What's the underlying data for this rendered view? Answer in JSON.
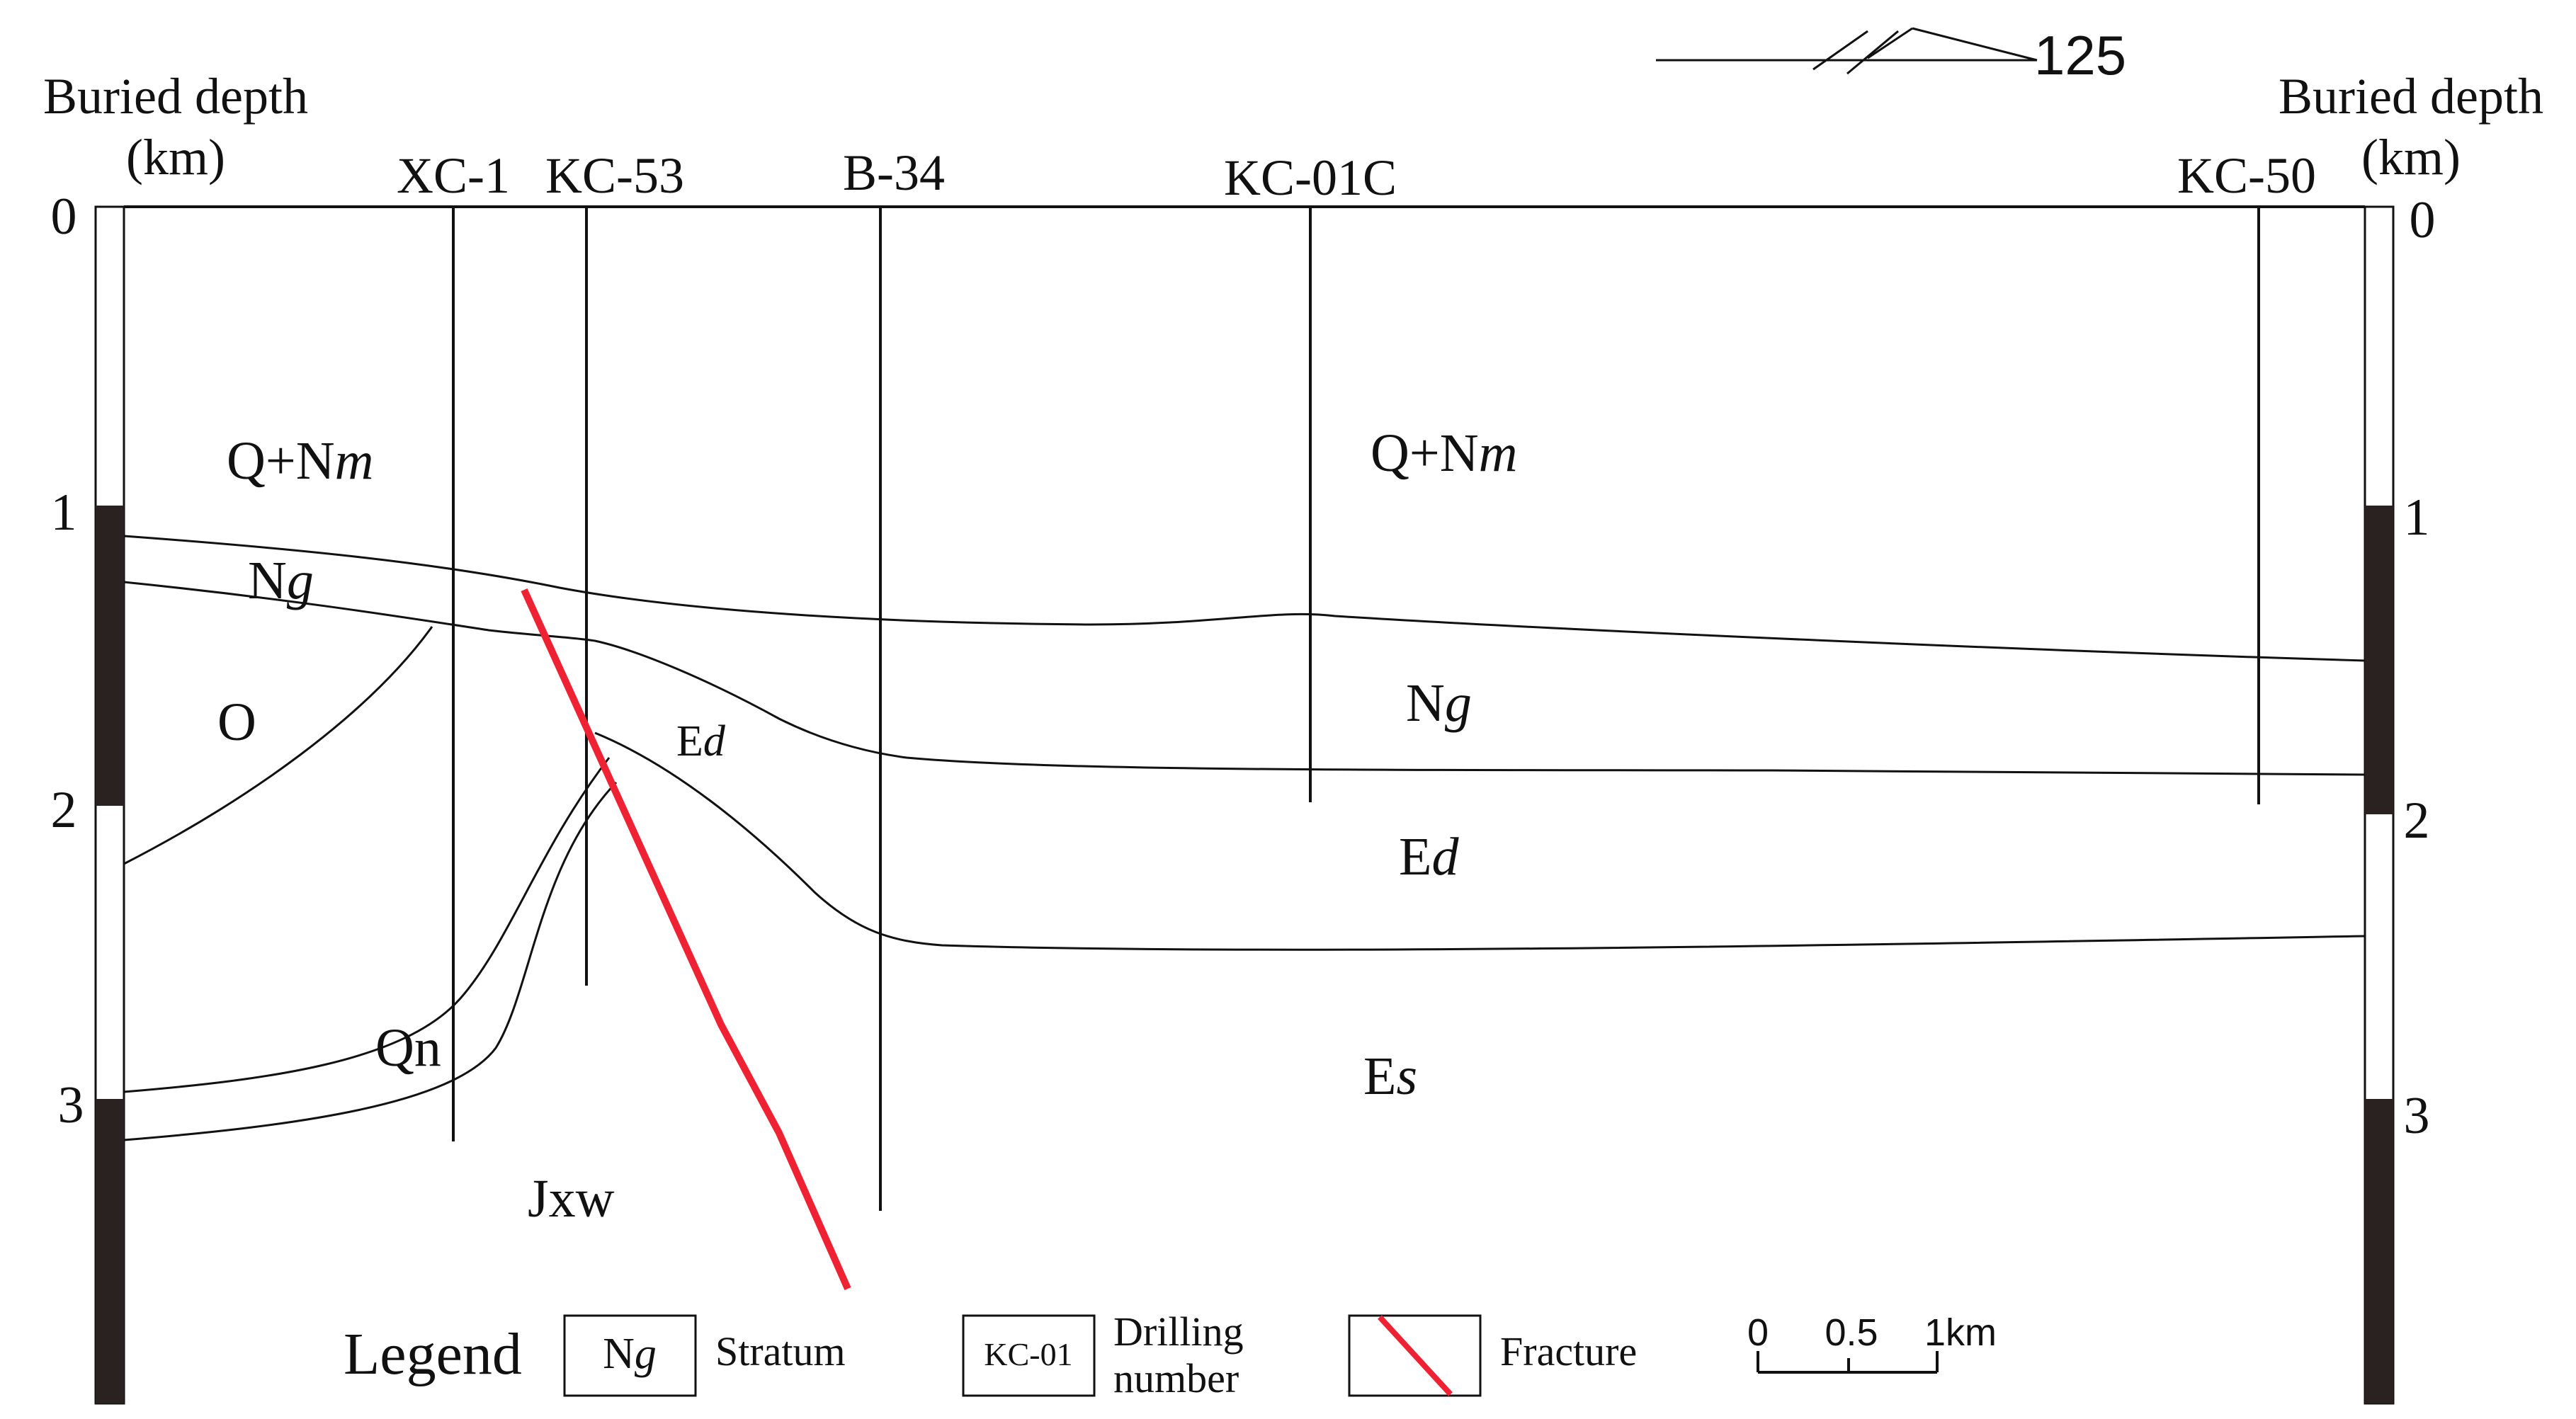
{
  "colors": {
    "line": "#111111",
    "fracture": "#ee2233",
    "column_dark": "#2a2220",
    "background": "#ffffff"
  },
  "header": {
    "left_axis_title_line1": "Buried depth",
    "left_axis_title_line2": "(km)",
    "right_axis_title_line1": "Buried depth",
    "right_axis_title_line2": "(km)",
    "orientation_label": "125"
  },
  "left_ticks": [
    "0",
    "1",
    "2",
    "3"
  ],
  "right_ticks": [
    "0",
    "1",
    "2",
    "3"
  ],
  "wells": [
    "XC-1",
    "KC-53",
    "B-34",
    "KC-01C",
    "KC-50"
  ],
  "strata": {
    "qnm": {
      "prefix": "Q+N",
      "suffix": "m"
    },
    "ng": {
      "prefix": "N",
      "suffix": "g"
    },
    "o": "O",
    "ed": {
      "prefix": "E",
      "suffix": "d"
    },
    "qn": "Qn",
    "jxw": "Jxw",
    "es": {
      "prefix": "E",
      "suffix": "s"
    }
  },
  "legend": {
    "title": "Legend",
    "stratum_sample": {
      "prefix": "N",
      "suffix": "g"
    },
    "stratum_label": "Stratum",
    "drilling_sample": "KC-01",
    "drilling_label_line1": "Drilling",
    "drilling_label_line2": "number",
    "fracture_label": "Fracture"
  },
  "scale_bar": {
    "ticks": [
      "0",
      "0.5",
      "1km"
    ]
  }
}
